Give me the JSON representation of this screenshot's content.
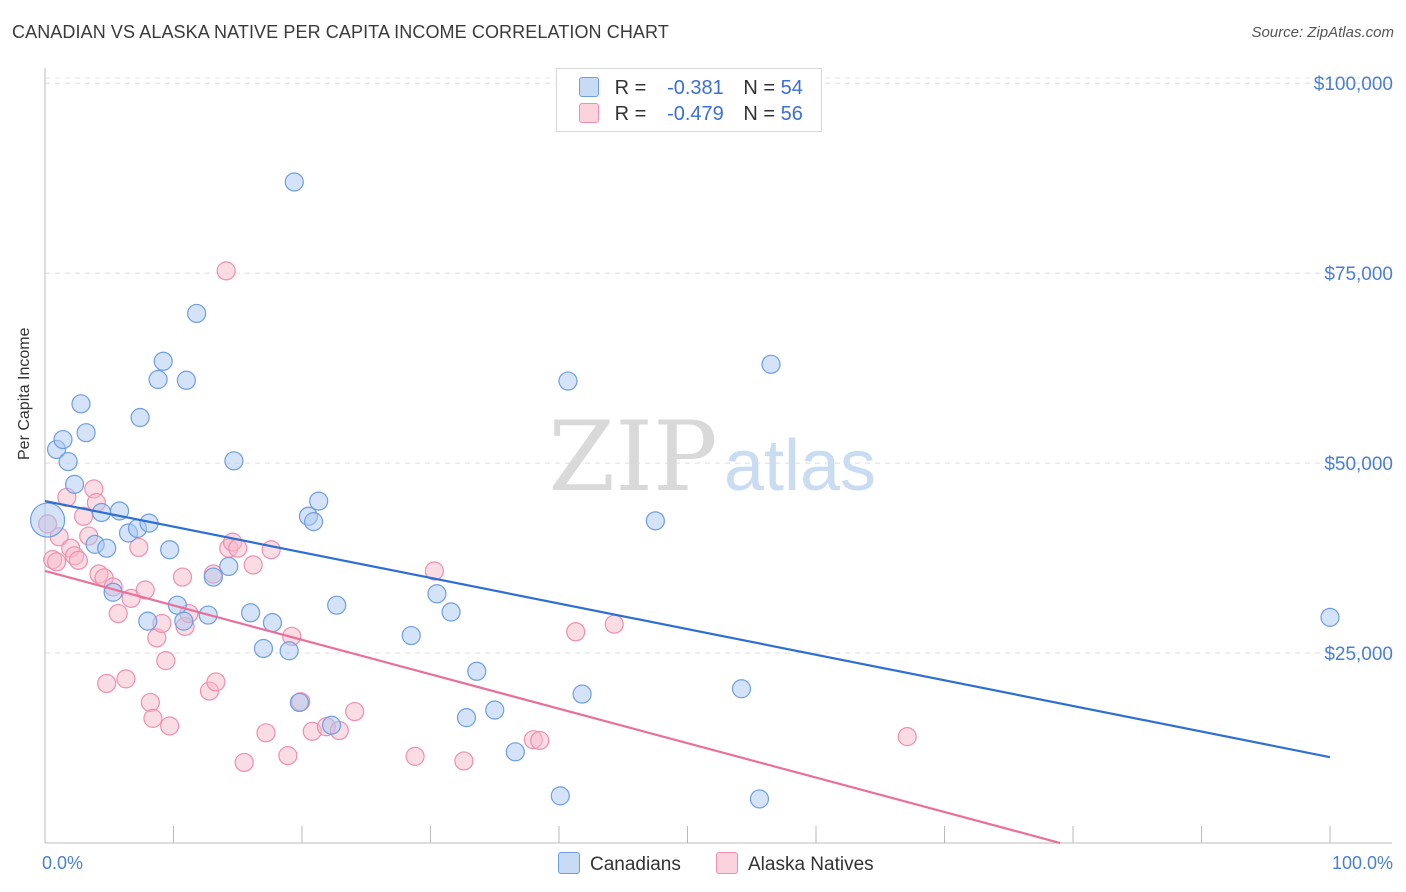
{
  "title": "CANADIAN VS ALASKA NATIVE PER CAPITA INCOME CORRELATION CHART",
  "source": "Source: ZipAtlas.com",
  "watermark": {
    "zip": "ZIP",
    "atlas": "atlas"
  },
  "legend": {
    "r_label": "R =",
    "n_label": "N =",
    "rows": [
      {
        "r": "-0.381",
        "n": "54",
        "color": "#aac8f0"
      },
      {
        "r": "-0.479",
        "n": "56",
        "color": "#f6b9cc"
      }
    ]
  },
  "bottom_legend": {
    "canadians": "Canadians",
    "alaska": "Alaska Natives"
  },
  "chart_data": {
    "type": "scatter",
    "title": "CANADIAN VS ALASKA NATIVE PER CAPITA INCOME CORRELATION CHART",
    "xlabel": "",
    "ylabel": "Per Capita Income",
    "xlim": [
      0,
      100
    ],
    "ylim": [
      0,
      102000
    ],
    "x_tick_labels": [
      "0.0%",
      "100.0%"
    ],
    "y_ticks": [
      25000,
      50000,
      75000,
      100000
    ],
    "y_tick_labels": [
      "$25,000",
      "$50,000",
      "$75,000",
      "$100,000"
    ],
    "series": [
      {
        "name": "Canadians",
        "color": "#aac8f0",
        "stroke": "#6f9ee0",
        "line_color": "#2f6fd0",
        "trend": {
          "x": [
            0,
            100
          ],
          "y": [
            45000,
            11300
          ]
        },
        "points": [
          [
            0.2,
            42500
          ],
          [
            0.9,
            51800
          ],
          [
            1.4,
            53100
          ],
          [
            1.8,
            50200
          ],
          [
            2.3,
            47200
          ],
          [
            2.8,
            57800
          ],
          [
            3.2,
            54000
          ],
          [
            3.9,
            39300
          ],
          [
            4.4,
            43500
          ],
          [
            4.8,
            38800
          ],
          [
            5.3,
            33000
          ],
          [
            5.8,
            43700
          ],
          [
            6.5,
            40800
          ],
          [
            7.2,
            41400
          ],
          [
            7.4,
            56000
          ],
          [
            8.1,
            42100
          ],
          [
            8.0,
            29200
          ],
          [
            8.8,
            61000
          ],
          [
            9.2,
            63400
          ],
          [
            9.7,
            38600
          ],
          [
            10.3,
            31300
          ],
          [
            10.8,
            29200
          ],
          [
            11.0,
            60900
          ],
          [
            11.8,
            69700
          ],
          [
            12.7,
            30000
          ],
          [
            13.1,
            35000
          ],
          [
            14.3,
            36400
          ],
          [
            14.7,
            50300
          ],
          [
            16.0,
            30300
          ],
          [
            17.0,
            25600
          ],
          [
            17.7,
            29000
          ],
          [
            19.0,
            25300
          ],
          [
            19.4,
            87000
          ],
          [
            19.8,
            18500
          ],
          [
            20.5,
            43000
          ],
          [
            20.9,
            42300
          ],
          [
            21.3,
            45000
          ],
          [
            22.3,
            15500
          ],
          [
            22.7,
            31300
          ],
          [
            28.5,
            27300
          ],
          [
            30.5,
            32800
          ],
          [
            31.6,
            30400
          ],
          [
            32.8,
            16500
          ],
          [
            33.6,
            22600
          ],
          [
            35.0,
            17500
          ],
          [
            36.6,
            12000
          ],
          [
            40.1,
            6200
          ],
          [
            40.7,
            60800
          ],
          [
            41.8,
            19600
          ],
          [
            47.5,
            42400
          ],
          [
            54.2,
            20300
          ],
          [
            55.6,
            5800
          ],
          [
            56.5,
            63000
          ],
          [
            100.0,
            29700
          ]
        ]
      },
      {
        "name": "Alaska Natives",
        "color": "#f6b9cc",
        "stroke": "#ee8fae",
        "line_color": "#e8709a",
        "trend": {
          "x": [
            0,
            79
          ],
          "y": [
            35800,
            0
          ]
        },
        "points": [
          [
            0.2,
            42000
          ],
          [
            0.6,
            37300
          ],
          [
            1.1,
            40300
          ],
          [
            1.7,
            45500
          ],
          [
            2.0,
            38800
          ],
          [
            2.3,
            37800
          ],
          [
            2.6,
            37200
          ],
          [
            3.0,
            43000
          ],
          [
            3.4,
            40400
          ],
          [
            3.8,
            46600
          ],
          [
            4.0,
            44800
          ],
          [
            4.2,
            35400
          ],
          [
            4.6,
            34900
          ],
          [
            4.8,
            21000
          ],
          [
            5.3,
            33700
          ],
          [
            5.7,
            30200
          ],
          [
            6.3,
            21600
          ],
          [
            6.7,
            32200
          ],
          [
            7.3,
            38900
          ],
          [
            7.8,
            33300
          ],
          [
            8.2,
            18500
          ],
          [
            8.4,
            16400
          ],
          [
            8.7,
            27000
          ],
          [
            9.1,
            28900
          ],
          [
            9.4,
            24000
          ],
          [
            9.7,
            15400
          ],
          [
            10.7,
            35000
          ],
          [
            10.9,
            28500
          ],
          [
            11.2,
            30200
          ],
          [
            12.8,
            20000
          ],
          [
            13.1,
            35400
          ],
          [
            13.3,
            21200
          ],
          [
            14.1,
            75300
          ],
          [
            14.3,
            38800
          ],
          [
            14.6,
            39600
          ],
          [
            15.0,
            38800
          ],
          [
            15.5,
            10600
          ],
          [
            16.2,
            36600
          ],
          [
            17.2,
            14500
          ],
          [
            17.6,
            38600
          ],
          [
            18.9,
            11500
          ],
          [
            19.2,
            27200
          ],
          [
            19.9,
            18600
          ],
          [
            20.8,
            14700
          ],
          [
            21.9,
            15300
          ],
          [
            22.9,
            14800
          ],
          [
            24.1,
            17300
          ],
          [
            28.8,
            11400
          ],
          [
            30.3,
            35800
          ],
          [
            32.6,
            10800
          ],
          [
            38.0,
            13600
          ],
          [
            38.5,
            13500
          ],
          [
            41.3,
            27800
          ],
          [
            44.3,
            28800
          ],
          [
            67.1,
            14000
          ],
          [
            0.9,
            37000
          ]
        ]
      }
    ]
  }
}
